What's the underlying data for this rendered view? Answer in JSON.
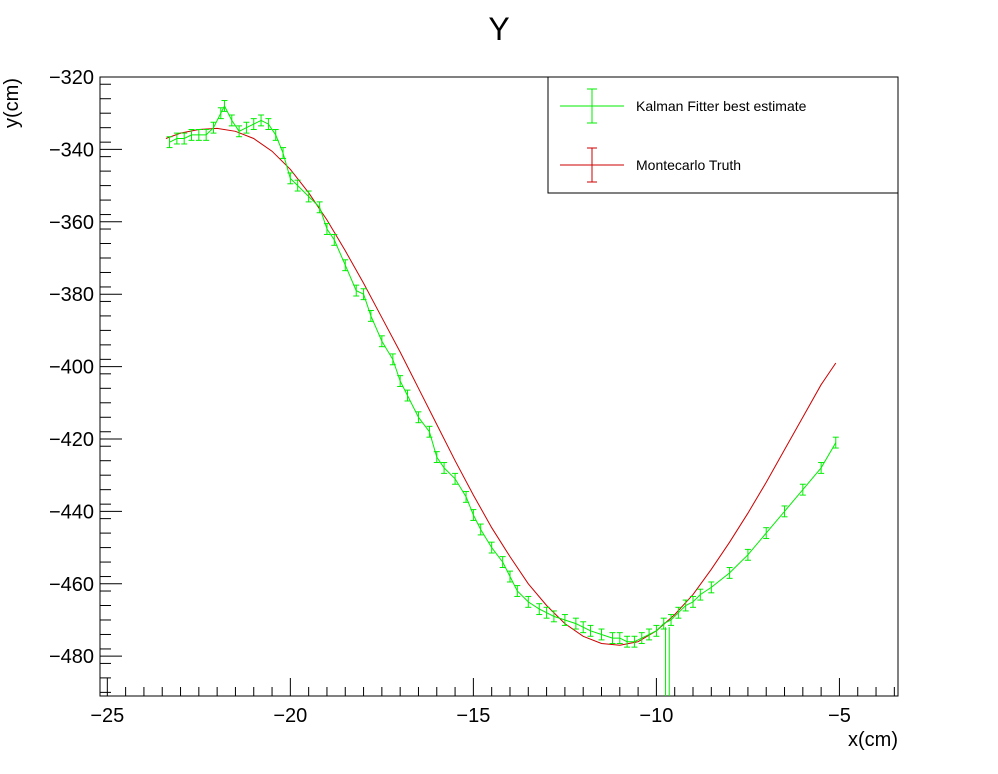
{
  "chart_data": {
    "type": "line",
    "title": "Y",
    "xlabel": "x(cm)",
    "ylabel": "y(cm)",
    "xlim": [
      -25.2,
      -3.4
    ],
    "ylim": [
      -491,
      -320
    ],
    "xticks": [
      -25,
      -20,
      -15,
      -10,
      -5
    ],
    "xtick_labels": [
      "−25",
      "−20",
      "−15",
      "−10",
      "−5"
    ],
    "yticks": [
      -320,
      -340,
      -360,
      -380,
      -400,
      -420,
      -440,
      -460,
      -480
    ],
    "ytick_labels": [
      "−320",
      "−340",
      "−360",
      "−380",
      "−400",
      "−420",
      "−440",
      "−460",
      "−480"
    ],
    "grid": false,
    "legend_position": "top-right",
    "colors": {
      "kalman": "#00ee00",
      "truth": "#cc0000"
    },
    "series": [
      {
        "name": "Kalman Fitter best estimate",
        "color": "#00ee00",
        "style": "errorbar",
        "x": [
          -23.3,
          -23.1,
          -22.9,
          -22.7,
          -22.5,
          -22.3,
          -22.1,
          -21.9,
          -21.8,
          -21.6,
          -21.4,
          -21.2,
          -21.0,
          -20.8,
          -20.6,
          -20.4,
          -20.2,
          -20.0,
          -19.8,
          -19.5,
          -19.2,
          -19.0,
          -18.8,
          -18.5,
          -18.2,
          -18.0,
          -17.8,
          -17.5,
          -17.2,
          -17.0,
          -16.8,
          -16.5,
          -16.2,
          -16.0,
          -15.8,
          -15.5,
          -15.2,
          -15.0,
          -14.8,
          -14.5,
          -14.2,
          -14.0,
          -13.8,
          -13.5,
          -13.2,
          -13.0,
          -12.8,
          -12.5,
          -12.2,
          -12.0,
          -11.8,
          -11.5,
          -11.2,
          -11.0,
          -10.8,
          -10.6,
          -10.4,
          -10.2,
          -10.0,
          -9.8,
          -9.6,
          -9.4,
          -9.2,
          -9.0,
          -8.8,
          -8.5,
          -8.0,
          -7.5,
          -7.0,
          -6.5,
          -6.0,
          -5.5,
          -5.1
        ],
        "y": [
          -338,
          -337,
          -337,
          -336,
          -336,
          -336,
          -334,
          -330,
          -328,
          -332,
          -335,
          -334,
          -333,
          -332,
          -333,
          -336,
          -341,
          -348,
          -350,
          -353,
          -356,
          -362,
          -365,
          -372,
          -379,
          -380,
          -386,
          -393,
          -398,
          -404,
          -408,
          -414,
          -418,
          -425,
          -428,
          -431,
          -436,
          -441,
          -445,
          -450,
          -454,
          -458,
          -462,
          -465,
          -467,
          -468,
          -469,
          -470,
          -471,
          -472,
          -473,
          -474,
          -475,
          -475,
          -476,
          -476,
          -475,
          -474,
          -473,
          -471,
          -470,
          -468,
          -466,
          -465,
          -463,
          -461,
          -457,
          -452,
          -446,
          -440,
          -434,
          -428,
          -421
        ],
        "yerr": 1.5
      },
      {
        "name": "Montecarlo Truth",
        "color": "#cc0000",
        "style": "line",
        "x": [
          -23.4,
          -23.0,
          -22.5,
          -22.0,
          -21.5,
          -21.0,
          -20.5,
          -20.0,
          -19.5,
          -19.0,
          -18.5,
          -18.0,
          -17.5,
          -17.0,
          -16.5,
          -16.0,
          -15.5,
          -15.0,
          -14.5,
          -14.0,
          -13.5,
          -13.0,
          -12.5,
          -12.0,
          -11.5,
          -11.0,
          -10.5,
          -10.0,
          -9.5,
          -9.0,
          -8.5,
          -8.0,
          -7.5,
          -7.0,
          -6.5,
          -6.0,
          -5.5,
          -5.1
        ],
        "y": [
          -337,
          -335.5,
          -334.5,
          -334.2,
          -335,
          -337,
          -340.5,
          -345.5,
          -352,
          -359.5,
          -368,
          -377,
          -386.5,
          -396,
          -406,
          -416,
          -426,
          -435.5,
          -444.5,
          -452.5,
          -460,
          -466,
          -471,
          -474.5,
          -476.5,
          -477,
          -476,
          -473,
          -468.5,
          -463,
          -456,
          -448.5,
          -440.5,
          -432,
          -423,
          -414,
          -405,
          -399
        ]
      }
    ]
  }
}
